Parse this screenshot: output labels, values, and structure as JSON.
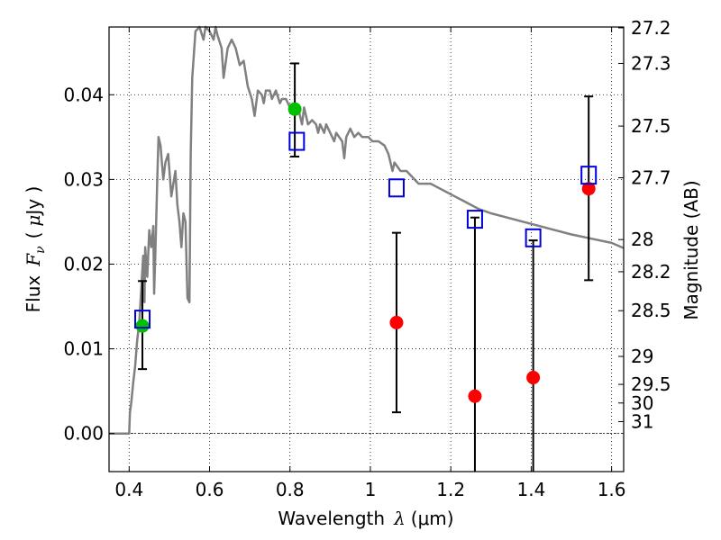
{
  "chart_data": {
    "type": "scatter",
    "xlabel": "Wavelength",
    "xlabel_symbol": "λ",
    "xlabel_unit": "(μm)",
    "ylabel": "Flux",
    "ylabel_symbol": "F",
    "ylabel_subscript": "ν",
    "ylabel_unit_open": "(",
    "ylabel_unit_mu": "μ",
    "ylabel_unit_rest": "Jy )",
    "y2label": "Magnitude (AB)",
    "xlim": [
      0.35,
      1.63
    ],
    "ylim": [
      -0.0045,
      0.048
    ],
    "grid": true,
    "xticks": [
      0.4,
      0.6,
      0.8,
      1.0,
      1.2,
      1.4,
      1.6
    ],
    "xtick_labels": [
      "0.4",
      "0.6",
      "0.8",
      "1",
      "1.2",
      "1.4",
      "1.6"
    ],
    "yticks": [
      0.0,
      0.01,
      0.02,
      0.03,
      0.04
    ],
    "ytick_labels": [
      "0.00",
      "0.01",
      "0.02",
      "0.03",
      "0.04"
    ],
    "y2ticks": [
      {
        "label": "27.2",
        "flux": 0.0479
      },
      {
        "label": "27.3",
        "flux": 0.0437
      },
      {
        "label": "27.5",
        "flux": 0.0363
      },
      {
        "label": "27.7",
        "flux": 0.0302
      },
      {
        "label": "28",
        "flux": 0.0229
      },
      {
        "label": "28.2",
        "flux": 0.0191
      },
      {
        "label": "28.5",
        "flux": 0.0145
      },
      {
        "label": "29",
        "flux": 0.0091
      },
      {
        "label": "29.5",
        "flux": 0.0058
      },
      {
        "label": "30",
        "flux": 0.0036
      },
      {
        "label": "31",
        "flux": 0.0014
      }
    ],
    "series": [
      {
        "kind": "line",
        "color": "#808080",
        "points": [
          [
            0.35,
            0.0
          ],
          [
            0.4,
            0.0
          ],
          [
            0.402,
            0.0025
          ],
          [
            0.405,
            0.0035
          ],
          [
            0.41,
            0.006
          ],
          [
            0.415,
            0.008
          ],
          [
            0.42,
            0.011
          ],
          [
            0.425,
            0.013
          ],
          [
            0.43,
            0.017
          ],
          [
            0.435,
            0.021
          ],
          [
            0.438,
            0.0155
          ],
          [
            0.44,
            0.022
          ],
          [
            0.445,
            0.0185
          ],
          [
            0.45,
            0.024
          ],
          [
            0.455,
            0.022
          ],
          [
            0.46,
            0.0245
          ],
          [
            0.462,
            0.0165
          ],
          [
            0.465,
            0.021
          ],
          [
            0.47,
            0.03
          ],
          [
            0.473,
            0.035
          ],
          [
            0.478,
            0.034
          ],
          [
            0.485,
            0.03
          ],
          [
            0.49,
            0.032
          ],
          [
            0.497,
            0.033
          ],
          [
            0.505,
            0.028
          ],
          [
            0.515,
            0.031
          ],
          [
            0.52,
            0.027
          ],
          [
            0.525,
            0.025
          ],
          [
            0.53,
            0.022
          ],
          [
            0.535,
            0.026
          ],
          [
            0.54,
            0.025
          ],
          [
            0.545,
            0.016
          ],
          [
            0.55,
            0.0155
          ],
          [
            0.553,
            0.033
          ],
          [
            0.557,
            0.042
          ],
          [
            0.565,
            0.0475
          ],
          [
            0.575,
            0.048
          ],
          [
            0.585,
            0.0465
          ],
          [
            0.59,
            0.048
          ],
          [
            0.6,
            0.0475
          ],
          [
            0.61,
            0.0465
          ],
          [
            0.615,
            0.048
          ],
          [
            0.62,
            0.047
          ],
          [
            0.63,
            0.0455
          ],
          [
            0.635,
            0.042
          ],
          [
            0.645,
            0.0455
          ],
          [
            0.655,
            0.0465
          ],
          [
            0.665,
            0.0455
          ],
          [
            0.675,
            0.0435
          ],
          [
            0.685,
            0.044
          ],
          [
            0.695,
            0.041
          ],
          [
            0.705,
            0.0395
          ],
          [
            0.712,
            0.0375
          ],
          [
            0.72,
            0.0405
          ],
          [
            0.73,
            0.04
          ],
          [
            0.735,
            0.039
          ],
          [
            0.74,
            0.0405
          ],
          [
            0.75,
            0.0405
          ],
          [
            0.755,
            0.0395
          ],
          [
            0.765,
            0.0405
          ],
          [
            0.775,
            0.039
          ],
          [
            0.78,
            0.0395
          ],
          [
            0.79,
            0.0395
          ],
          [
            0.8,
            0.0385
          ],
          [
            0.81,
            0.0385
          ],
          [
            0.82,
            0.0385
          ],
          [
            0.825,
            0.0375
          ],
          [
            0.83,
            0.0365
          ],
          [
            0.835,
            0.0385
          ],
          [
            0.845,
            0.0365
          ],
          [
            0.855,
            0.037
          ],
          [
            0.865,
            0.0365
          ],
          [
            0.87,
            0.0355
          ],
          [
            0.875,
            0.0365
          ],
          [
            0.885,
            0.0355
          ],
          [
            0.89,
            0.0365
          ],
          [
            0.9,
            0.0355
          ],
          [
            0.91,
            0.0345
          ],
          [
            0.915,
            0.0355
          ],
          [
            0.93,
            0.0345
          ],
          [
            0.935,
            0.0325
          ],
          [
            0.94,
            0.035
          ],
          [
            0.95,
            0.036
          ],
          [
            0.96,
            0.035
          ],
          [
            0.97,
            0.0355
          ],
          [
            0.98,
            0.035
          ],
          [
            0.995,
            0.035
          ],
          [
            1.005,
            0.0345
          ],
          [
            1.02,
            0.0345
          ],
          [
            1.035,
            0.034
          ],
          [
            1.045,
            0.033
          ],
          [
            1.055,
            0.031
          ],
          [
            1.06,
            0.032
          ],
          [
            1.075,
            0.031
          ],
          [
            1.09,
            0.031
          ],
          [
            1.1,
            0.0305
          ],
          [
            1.11,
            0.03
          ],
          [
            1.12,
            0.0295
          ],
          [
            1.13,
            0.0295
          ],
          [
            1.15,
            0.0295
          ],
          [
            1.17,
            0.029
          ],
          [
            1.19,
            0.0285
          ],
          [
            1.21,
            0.028
          ],
          [
            1.23,
            0.0275
          ],
          [
            1.25,
            0.027
          ],
          [
            1.27,
            0.0265
          ],
          [
            1.3,
            0.026
          ],
          [
            1.34,
            0.0255
          ],
          [
            1.38,
            0.025
          ],
          [
            1.42,
            0.0245
          ],
          [
            1.46,
            0.024
          ],
          [
            1.5,
            0.0235
          ],
          [
            1.55,
            0.023
          ],
          [
            1.6,
            0.0225
          ],
          [
            1.63,
            0.0219
          ]
        ]
      },
      {
        "kind": "points",
        "marker": "circle",
        "color": "#00c000",
        "points": [
          {
            "x": 0.433,
            "y": 0.0127,
            "err_lo": 0.0076,
            "err_hi": 0.018
          },
          {
            "x": 0.812,
            "y": 0.0383,
            "err_lo": 0.0327,
            "err_hi": 0.0437
          }
        ]
      },
      {
        "kind": "points",
        "marker": "circle",
        "color": "#ff0000",
        "points": [
          {
            "x": 1.065,
            "y": 0.0131,
            "err_lo": 0.0025,
            "err_hi": 0.0237
          },
          {
            "x": 1.26,
            "y": 0.0044,
            "err_lo": -0.0045,
            "err_hi": 0.0255
          },
          {
            "x": 1.405,
            "y": 0.0066,
            "err_lo": -0.0045,
            "err_hi": 0.0228
          },
          {
            "x": 1.543,
            "y": 0.0289,
            "err_lo": 0.0181,
            "err_hi": 0.0398
          }
        ]
      },
      {
        "kind": "points",
        "marker": "open-square",
        "color": "#0000dd",
        "points": [
          {
            "x": 0.433,
            "y": 0.0135
          },
          {
            "x": 0.817,
            "y": 0.0345
          },
          {
            "x": 1.065,
            "y": 0.029
          },
          {
            "x": 1.26,
            "y": 0.0253
          },
          {
            "x": 1.405,
            "y": 0.0231
          },
          {
            "x": 1.543,
            "y": 0.0305
          }
        ]
      }
    ]
  }
}
